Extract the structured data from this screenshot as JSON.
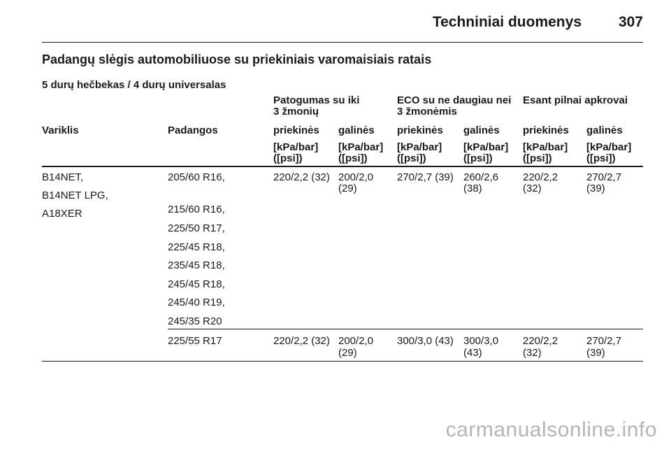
{
  "header": {
    "title": "Techniniai duomenys",
    "page_number": "307"
  },
  "section_title": "Padangų slėgis automobiliuose su priekiniais varomaisiais ratais",
  "subtitle": "5 durų hečbekas / 4 durų universalas",
  "table": {
    "groups": [
      {
        "line1": "Patogumas su iki",
        "line2": "3 žmonių"
      },
      {
        "line1": "ECO su ne daugiau nei",
        "line2": "3 žmonėmis"
      },
      {
        "line1": "Esant pilnai apkrovai",
        "line2": ""
      }
    ],
    "col_engine": "Variklis",
    "col_tyres": "Padangos",
    "col_front": "priekinės",
    "col_rear": "galinės",
    "unit_line1": "[kPa/bar]",
    "unit_line2": "([psi])",
    "engines": [
      "B14NET,",
      "B14NET LPG,",
      "A18XER"
    ],
    "tyres_group1": [
      "205/60 R16,",
      "215/60 R16,",
      "225/50 R17,",
      "225/45 R18,",
      "235/45 R18,",
      "245/45 R18,",
      "245/40 R19,",
      "245/35 R20"
    ],
    "row1": {
      "c1_front": "220/2,2 (32)",
      "c1_rear_l1": "200/2,0",
      "c1_rear_l2": "(29)",
      "c2_front": "270/2,7 (39)",
      "c2_rear_l1": "260/2,6",
      "c2_rear_l2": "(38)",
      "c3_front_l1": "220/2,2",
      "c3_front_l2": "(32)",
      "c3_rear_l1": "270/2,7",
      "c3_rear_l2": "(39)"
    },
    "row2": {
      "tyre": "225/55 R17",
      "c1_front": "220/2,2 (32)",
      "c1_rear_l1": "200/2,0",
      "c1_rear_l2": "(29)",
      "c2_front": "300/3,0 (43)",
      "c2_rear_l1": "300/3,0",
      "c2_rear_l2": "(43)",
      "c3_front_l1": "220/2,2",
      "c3_front_l2": "(32)",
      "c3_rear_l1": "270/2,7",
      "c3_rear_l2": "(39)"
    }
  },
  "watermark": "carmanualsonline.info"
}
